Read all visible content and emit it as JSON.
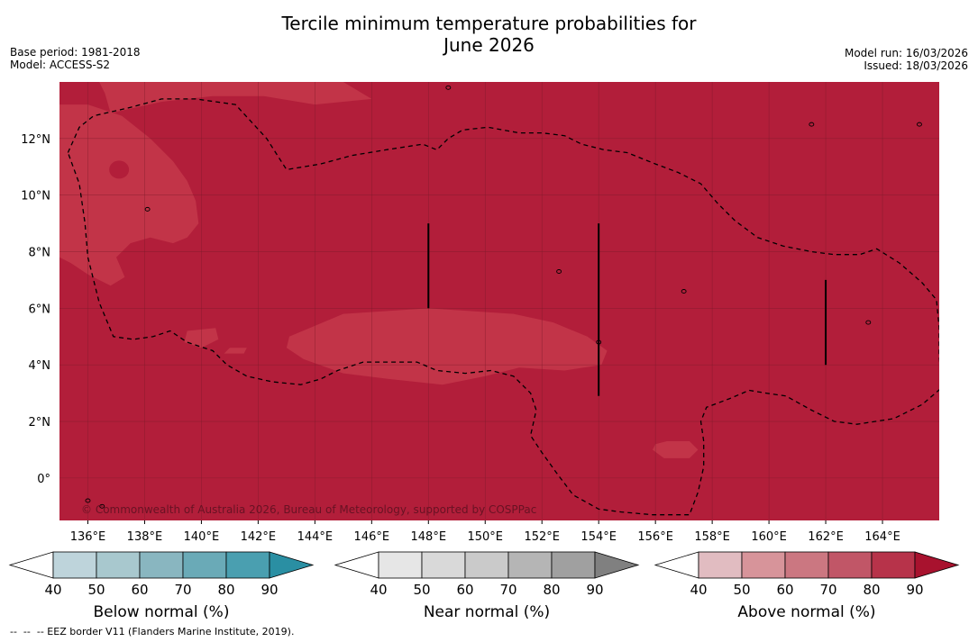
{
  "header": {
    "title_line1": "Tercile minimum temperature probabilities for",
    "title_line2": "June 2026",
    "base_period": "Base period: 1981-2018",
    "model": "Model: ACCESS-S2",
    "model_run": "Model run: 16/03/2026",
    "issued": "Issued: 18/03/2026"
  },
  "colors": {
    "above_fill": "#b21e3a",
    "above_light": "#c23448",
    "above_lighter": "#c6424f",
    "gridline": "#7a1a2a"
  },
  "chart_data": {
    "type": "heatmap",
    "variable": "Tercile minimum temperature probabilities",
    "lon_range": [
      135,
      166
    ],
    "lat_range": [
      -1.5,
      14
    ],
    "x_ticks": [
      136,
      138,
      140,
      142,
      144,
      146,
      148,
      150,
      152,
      154,
      156,
      158,
      160,
      162,
      164
    ],
    "x_tick_labels": [
      "136°E",
      "138°E",
      "140°E",
      "142°E",
      "144°E",
      "146°E",
      "148°E",
      "150°E",
      "152°E",
      "154°E",
      "156°E",
      "158°E",
      "160°E",
      "162°E",
      "164°E"
    ],
    "y_ticks": [
      0,
      2,
      4,
      6,
      8,
      10,
      12
    ],
    "y_tick_labels": [
      "0°",
      "2°N",
      "4°N",
      "6°N",
      "8°N",
      "10°N",
      "12°N"
    ],
    "dominant_category": "Above normal",
    "dominant_probability_range": [
      80,
      90
    ],
    "secondary_probability_range": [
      70,
      80
    ],
    "eez_border": [
      [
        135.3,
        11.5
      ],
      [
        135.7,
        12.4
      ],
      [
        136.2,
        12.8
      ],
      [
        137.5,
        13.1
      ],
      [
        138.6,
        13.4
      ],
      [
        139.8,
        13.4
      ],
      [
        141.2,
        13.2
      ],
      [
        142.3,
        12.0
      ],
      [
        143.0,
        10.9
      ],
      [
        144.2,
        11.1
      ],
      [
        145.3,
        11.4
      ],
      [
        146.5,
        11.6
      ],
      [
        147.8,
        11.8
      ],
      [
        148.3,
        11.6
      ],
      [
        148.7,
        12.0
      ],
      [
        149.2,
        12.3
      ],
      [
        150.1,
        12.4
      ],
      [
        151.2,
        12.2
      ],
      [
        152.0,
        12.2
      ],
      [
        152.8,
        12.1
      ],
      [
        153.4,
        11.8
      ],
      [
        154.2,
        11.6
      ],
      [
        155.0,
        11.5
      ],
      [
        156.0,
        11.1
      ],
      [
        156.8,
        10.8
      ],
      [
        157.6,
        10.4
      ],
      [
        158.2,
        9.7
      ],
      [
        158.8,
        9.1
      ],
      [
        159.6,
        8.5
      ],
      [
        160.5,
        8.2
      ],
      [
        161.5,
        8.0
      ],
      [
        162.3,
        7.9
      ],
      [
        163.2,
        7.9
      ],
      [
        163.8,
        8.1
      ],
      [
        164.6,
        7.6
      ],
      [
        165.4,
        6.9
      ],
      [
        165.9,
        6.3
      ],
      [
        166.0,
        5.3
      ],
      [
        166.0,
        4.3
      ],
      [
        166.1,
        3.2
      ],
      [
        165.4,
        2.6
      ],
      [
        164.4,
        2.1
      ],
      [
        163.1,
        1.9
      ],
      [
        162.3,
        2.0
      ],
      [
        161.5,
        2.4
      ],
      [
        160.6,
        2.9
      ],
      [
        159.9,
        3.0
      ],
      [
        159.3,
        3.1
      ],
      [
        158.6,
        2.8
      ],
      [
        157.8,
        2.5
      ],
      [
        157.6,
        2.0
      ],
      [
        157.7,
        1.3
      ],
      [
        157.7,
        0.4
      ],
      [
        157.5,
        -0.5
      ],
      [
        157.2,
        -1.3
      ],
      [
        155.9,
        -1.3
      ],
      [
        154.8,
        -1.2
      ],
      [
        154.0,
        -1.1
      ],
      [
        153.1,
        -0.6
      ],
      [
        152.5,
        0.2
      ],
      [
        152.0,
        0.9
      ],
      [
        151.6,
        1.5
      ],
      [
        151.8,
        2.4
      ],
      [
        151.6,
        3.0
      ],
      [
        151.0,
        3.6
      ],
      [
        150.2,
        3.8
      ],
      [
        149.3,
        3.7
      ],
      [
        148.3,
        3.8
      ],
      [
        147.6,
        4.1
      ],
      [
        146.8,
        4.1
      ],
      [
        145.7,
        4.1
      ],
      [
        144.8,
        3.8
      ],
      [
        144.2,
        3.5
      ],
      [
        143.5,
        3.3
      ],
      [
        142.5,
        3.4
      ],
      [
        141.6,
        3.6
      ],
      [
        140.9,
        4.0
      ],
      [
        140.4,
        4.5
      ],
      [
        139.5,
        4.8
      ],
      [
        138.9,
        5.2
      ],
      [
        138.3,
        5.0
      ],
      [
        137.6,
        4.9
      ],
      [
        136.9,
        5.0
      ],
      [
        136.4,
        6.2
      ],
      [
        136.0,
        7.8
      ],
      [
        135.9,
        9.0
      ],
      [
        135.7,
        10.4
      ],
      [
        135.3,
        11.5
      ]
    ],
    "light_regions": [
      [
        [
          136.4,
          14
        ],
        [
          145.0,
          14
        ],
        [
          146.0,
          13.4
        ],
        [
          144.0,
          13.2
        ],
        [
          142.2,
          13.5
        ],
        [
          140.4,
          13.5
        ],
        [
          138.6,
          13.3
        ],
        [
          136.8,
          12.9
        ],
        [
          136.6,
          13.6
        ]
      ],
      [
        [
          135,
          13.2
        ],
        [
          136.0,
          13.2
        ],
        [
          137.2,
          12.8
        ],
        [
          138.2,
          12.0
        ],
        [
          139.0,
          11.2
        ],
        [
          139.5,
          10.5
        ],
        [
          139.8,
          9.8
        ],
        [
          139.9,
          9.0
        ],
        [
          139.5,
          8.5
        ],
        [
          139.0,
          8.3
        ],
        [
          138.2,
          8.5
        ],
        [
          137.5,
          8.3
        ],
        [
          137.0,
          7.8
        ],
        [
          137.3,
          7.1
        ],
        [
          136.8,
          6.8
        ],
        [
          136.0,
          7.2
        ],
        [
          135.4,
          7.6
        ],
        [
          135,
          7.8
        ]
      ],
      [
        [
          143.1,
          5.0
        ],
        [
          145.0,
          5.8
        ],
        [
          146.5,
          5.9
        ],
        [
          148.0,
          6.0
        ],
        [
          149.5,
          5.9
        ],
        [
          151.0,
          5.8
        ],
        [
          152.4,
          5.5
        ],
        [
          153.6,
          5.0
        ],
        [
          154.3,
          4.5
        ],
        [
          154.1,
          4.0
        ],
        [
          152.8,
          3.8
        ],
        [
          151.2,
          3.9
        ],
        [
          150.0,
          3.6
        ],
        [
          148.5,
          3.3
        ],
        [
          146.6,
          3.5
        ],
        [
          145.0,
          3.7
        ],
        [
          143.6,
          4.2
        ],
        [
          143.0,
          4.6
        ]
      ],
      [
        [
          139.5,
          5.2
        ],
        [
          140.5,
          5.3
        ],
        [
          140.6,
          4.9
        ],
        [
          140.0,
          4.6
        ],
        [
          139.4,
          4.8
        ]
      ],
      [
        [
          141.0,
          4.6
        ],
        [
          141.6,
          4.6
        ],
        [
          141.5,
          4.4
        ],
        [
          140.8,
          4.4
        ]
      ],
      [
        [
          156.0,
          1.2
        ],
        [
          156.4,
          1.3
        ],
        [
          157.2,
          1.3
        ],
        [
          157.5,
          1.0
        ],
        [
          157.2,
          0.7
        ],
        [
          156.3,
          0.7
        ],
        [
          155.9,
          1.0
        ]
      ]
    ],
    "vertical_lines": [
      {
        "lon": 148,
        "lat_from": 6.0,
        "lat_to": 9.0
      },
      {
        "lon": 154,
        "lat_from": 2.9,
        "lat_to": 9.0
      },
      {
        "lon": 162,
        "lat_from": 4.0,
        "lat_to": 7.0
      }
    ],
    "islands": [
      [
        148.7,
        13.8
      ],
      [
        138.1,
        9.5
      ],
      [
        157.0,
        6.6
      ],
      [
        152.6,
        7.3
      ],
      [
        163.5,
        5.5
      ],
      [
        161.5,
        12.5
      ],
      [
        165.3,
        12.5
      ],
      [
        136.0,
        -0.8
      ],
      [
        154.0,
        4.8
      ],
      [
        136.5,
        -1.0
      ]
    ],
    "lighter_spots": [
      [
        137.1,
        10.9
      ]
    ]
  },
  "map": {
    "copyright": "© Commonwealth of Australia 2026, Bureau of Meteorology, supported by COSPPac"
  },
  "legend": {
    "below": {
      "label": "Below normal (%)",
      "ticks": [
        "40",
        "50",
        "60",
        "70",
        "80",
        "90"
      ],
      "colors": [
        "#ffffff",
        "#bed4db",
        "#a8c8ce",
        "#89b6c0",
        "#6aaab7",
        "#4a9fb0",
        "#2a8fa3"
      ]
    },
    "near": {
      "label": "Near normal (%)",
      "ticks": [
        "40",
        "50",
        "60",
        "70",
        "80",
        "90"
      ],
      "colors": [
        "#ffffff",
        "#e6e6e6",
        "#d9d9d9",
        "#cacaca",
        "#b5b5b5",
        "#a0a0a0",
        "#808080"
      ]
    },
    "above": {
      "label": "Above normal (%)",
      "ticks": [
        "40",
        "50",
        "60",
        "70",
        "80",
        "90"
      ],
      "colors": [
        "#ffffff",
        "#e1bcc1",
        "#d7949a",
        "#cb7781",
        "#c15667",
        "#b7334a",
        "#a8122e"
      ]
    }
  },
  "footer": {
    "eez_note": "--  --  -- EEZ border V11 (Flanders Marine Institute, 2019)."
  }
}
